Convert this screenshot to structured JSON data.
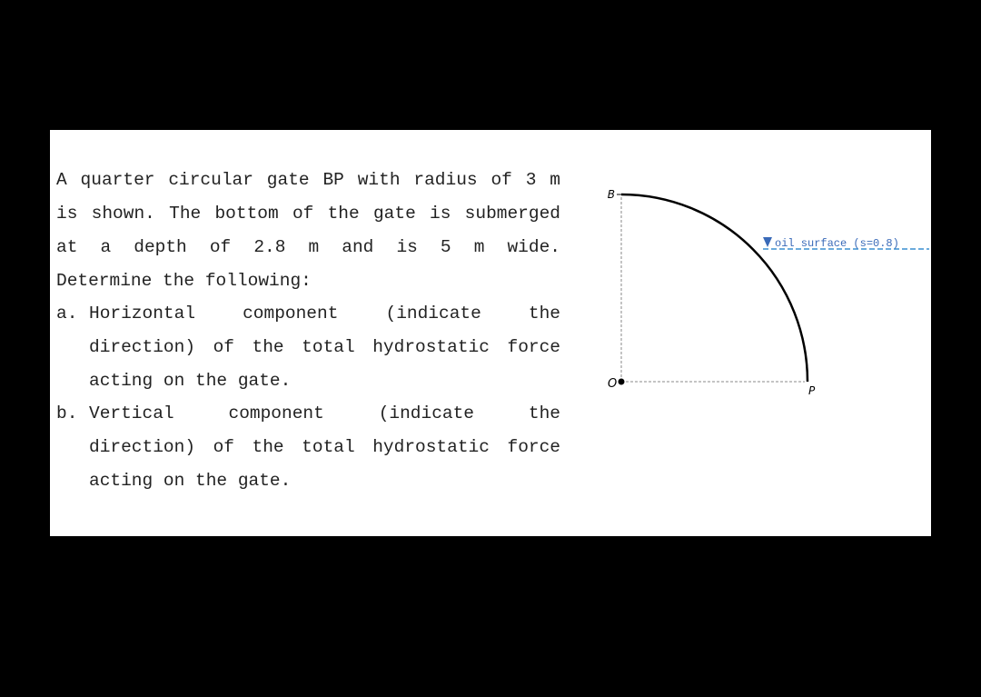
{
  "problem": {
    "intro_lines": [
      "A quarter circular gate BP with radius of 3 m",
      "is shown. The bottom of the gate is submerged",
      "at a depth of 2.8 m and is 5 m wide.",
      "Determine the following:"
    ],
    "items": [
      {
        "marker": "a.",
        "lines": [
          "Horizontal component (indicate the",
          "direction) of the total hydrostatic force",
          "acting on the gate."
        ]
      },
      {
        "marker": "b.",
        "lines": [
          "Vertical component (indicate the",
          "direction) of the total hydrostatic force",
          "acting on the gate."
        ]
      }
    ]
  },
  "diagram": {
    "labels": {
      "b": "B",
      "o": "O",
      "p": "P",
      "surface": "oil surface (s=0.8)"
    }
  }
}
